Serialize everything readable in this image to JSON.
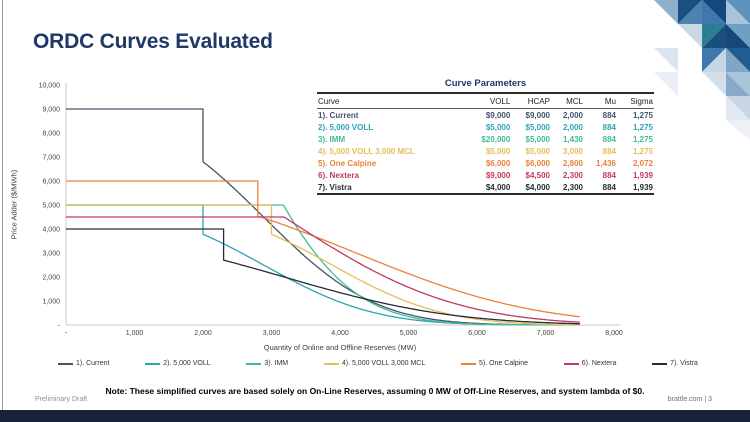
{
  "slide": {
    "title": "ORDC Curves Evaluated",
    "note": "Note: These simplified curves are based solely on On-Line Reserves, assuming 0 MW of Off-Line Reserves, and system lambda of $0.",
    "footer_left": "Preliminary Draft",
    "footer_right": "brattle.com | 3",
    "title_color": "#1F3864",
    "bottom_bar_color": "#18233B",
    "accent_palette": [
      "#16477C",
      "#1C4E80",
      "#3E78AD",
      "#5E92BC",
      "#7FA6C6",
      "#A9C3DA",
      "#CBD9E7",
      "#2C7F92"
    ]
  },
  "table": {
    "title": "Curve Parameters",
    "columns": [
      "Curve",
      "VOLL",
      "HCAP",
      "MCL",
      "Mu",
      "Sigma"
    ],
    "rows": [
      {
        "color": "#44546A",
        "cells": [
          "1). Current",
          "$9,000",
          "$9,000",
          "2,000",
          "884",
          "1,275"
        ]
      },
      {
        "color": "#2EA3B7",
        "cells": [
          "2). 5,000 VOLL",
          "$5,000",
          "$5,000",
          "2,000",
          "884",
          "1,275"
        ]
      },
      {
        "color": "#3FBD96",
        "cells": [
          "3). IMM",
          "$20,000",
          "$5,000",
          "1,430",
          "884",
          "1,275"
        ]
      },
      {
        "color": "#E5BE5A",
        "cells": [
          "4). 5,000 VOLL 3,000 MCL",
          "$5,000",
          "$5,000",
          "3,000",
          "884",
          "1,275"
        ]
      },
      {
        "color": "#E8823E",
        "cells": [
          "5). One Calpine",
          "$6,000",
          "$6,000",
          "2,800",
          "1,436",
          "2,072"
        ]
      },
      {
        "color": "#C13A60",
        "cells": [
          "6). Nextera",
          "$9,000",
          "$4,500",
          "2,300",
          "884",
          "1,939"
        ]
      },
      {
        "color": "#242C39",
        "cells": [
          "7). Vistra",
          "$4,000",
          "$4,000",
          "2,300",
          "884",
          "1,939"
        ]
      }
    ]
  },
  "chart_data": {
    "type": "line",
    "xlabel": "Quantity of Online and Offline Reserves (MW)",
    "ylabel": "Price Adder ($/MWh)",
    "xlim": [
      0,
      8000
    ],
    "ylim": [
      0,
      10000
    ],
    "x_ticks": [
      "-",
      "1,000",
      "2,000",
      "3,000",
      "4,000",
      "5,000",
      "6,000",
      "7,000",
      "8,000"
    ],
    "y_ticks": [
      "-",
      "1,000",
      "2,000",
      "3,000",
      "4,000",
      "5,000",
      "6,000",
      "7,000",
      "8,000",
      "9,000",
      "10,000"
    ],
    "grid": false,
    "legend_position": "bottom",
    "x_draw_max": 7500,
    "model": "price(x) = HCAP for x <= MCL, else min(HCAP, VOLL * (1 - NormCDF((x - MCL - Mu)/Sigma)))",
    "series": [
      {
        "name": "1). Current",
        "voll": 9000,
        "hcap": 9000,
        "mcl": 2000,
        "mu": 884,
        "sigma": 1275,
        "color": "#44546A"
      },
      {
        "name": "2). 5,000 VOLL",
        "voll": 5000,
        "hcap": 5000,
        "mcl": 2000,
        "mu": 884,
        "sigma": 1275,
        "color": "#2EA3B7"
      },
      {
        "name": "3). IMM",
        "voll": 20000,
        "hcap": 5000,
        "mcl": 1430,
        "mu": 884,
        "sigma": 1275,
        "color": "#3FBD96"
      },
      {
        "name": "4). 5,000 VOLL 3,000 MCL",
        "voll": 5000,
        "hcap": 5000,
        "mcl": 3000,
        "mu": 884,
        "sigma": 1275,
        "color": "#E5BE5A"
      },
      {
        "name": "5). One Calpine",
        "voll": 6000,
        "hcap": 6000,
        "mcl": 2800,
        "mu": 1436,
        "sigma": 2072,
        "color": "#E8823E"
      },
      {
        "name": "6). Nextera",
        "voll": 9000,
        "hcap": 4500,
        "mcl": 2300,
        "mu": 884,
        "sigma": 1939,
        "color": "#C13A60"
      },
      {
        "name": "7). Vistra",
        "voll": 4000,
        "hcap": 4000,
        "mcl": 2300,
        "mu": 884,
        "sigma": 1939,
        "color": "#242C39"
      }
    ]
  },
  "legend": {
    "items": [
      {
        "label": "1). Current",
        "color": "#44546A"
      },
      {
        "label": "2). 5,000 VOLL",
        "color": "#2EA3B7"
      },
      {
        "label": "3). IMM",
        "color": "#3FBD96"
      },
      {
        "label": "4). 5,000 VOLL 3,000 MCL",
        "color": "#E5BE5A"
      },
      {
        "label": "5). One Calpine",
        "color": "#E8823E"
      },
      {
        "label": "6). Nextera",
        "color": "#C13A60"
      },
      {
        "label": "7). Vistra",
        "color": "#242C39"
      }
    ]
  }
}
